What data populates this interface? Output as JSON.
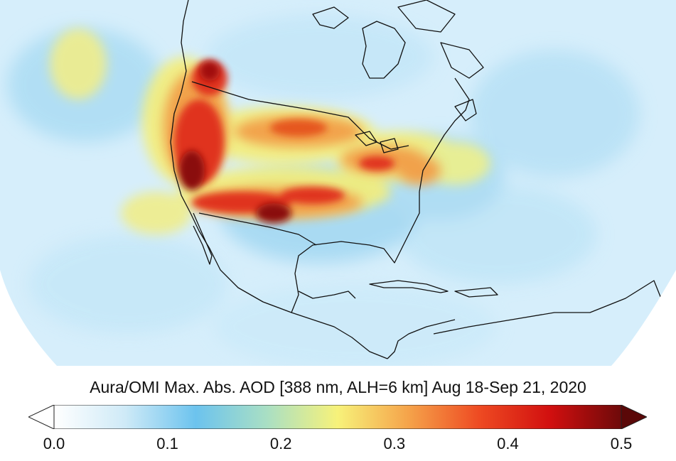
{
  "title": "Aura/OMI Max. Abs. AOD [388 nm, ALH=6 km] Aug 18-Sep 21, 2020",
  "colorbar": {
    "min": 0.0,
    "max": 0.5,
    "ticks": [
      "0.0",
      "0.1",
      "0.2",
      "0.3",
      "0.4",
      "0.5"
    ],
    "extend_low": true,
    "extend_high": true,
    "stops": [
      "#ffffff",
      "#cfeaf7",
      "#6cc3ee",
      "#a9dfc4",
      "#f7f27a",
      "#f5a34a",
      "#ee4a22",
      "#d10f0f",
      "#6e0a0a"
    ]
  },
  "colors": {
    "ocean_background": "#d8eefb",
    "low": "#b9e1f5",
    "medium": "#f7f27a",
    "high": "#f07a2a",
    "very_high": "#a50f0f",
    "coastline": "#111111"
  }
}
